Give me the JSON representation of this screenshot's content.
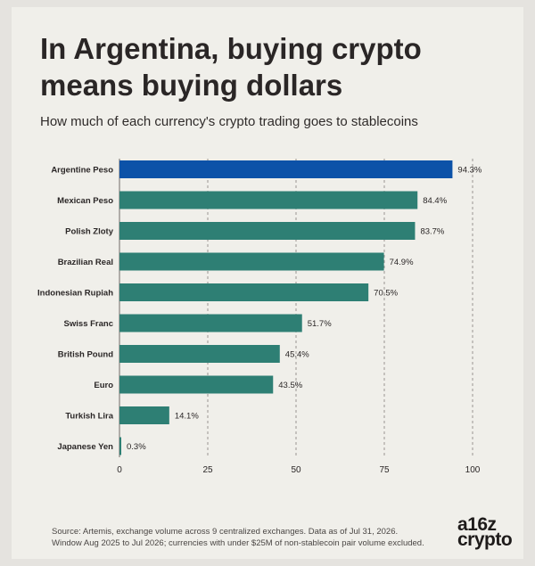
{
  "page": {
    "title": "In Argentina, buying crypto means buying dollars",
    "subtitle": "How much of each currency's crypto trading goes to stablecoins",
    "source_line1": "Source: Artemis, exchange volume across 9 centralized exchanges. Data as of Jul 31, 2026.",
    "source_line2": "Window Aug 2025 to Jul 2026; currencies with under $25M of non-stablecoin pair volume excluded.",
    "logo_line1": "a16z",
    "logo_line2": "crypto"
  },
  "chart_data": {
    "type": "bar",
    "orientation": "horizontal",
    "categories": [
      "Argentine Peso",
      "Mexican Peso",
      "Polish Zloty",
      "Brazilian Real",
      "Indonesian Rupiah",
      "Swiss Franc",
      "British Pound",
      "Euro",
      "Turkish Lira",
      "Japanese Yen"
    ],
    "values": [
      94.3,
      84.4,
      83.7,
      74.9,
      70.5,
      51.7,
      45.4,
      43.5,
      14.1,
      0.3
    ],
    "value_labels": [
      "94.3%",
      "84.4%",
      "83.7%",
      "74.9%",
      "70.5%",
      "51.7%",
      "45.4%",
      "43.5%",
      "14.1%",
      "0.3%"
    ],
    "highlight_category": "Argentine Peso",
    "colors": {
      "highlight": "#0c52a8",
      "default": "#2e7f74",
      "grid": "#9a9693",
      "text": "#2a2626"
    },
    "xlim": [
      0,
      100
    ],
    "xticks": [
      0,
      25,
      50,
      75,
      100
    ],
    "xtick_labels": [
      "0",
      "25",
      "50",
      "75",
      "100"
    ],
    "grid": true,
    "grid_style": "dashed-vertical"
  }
}
